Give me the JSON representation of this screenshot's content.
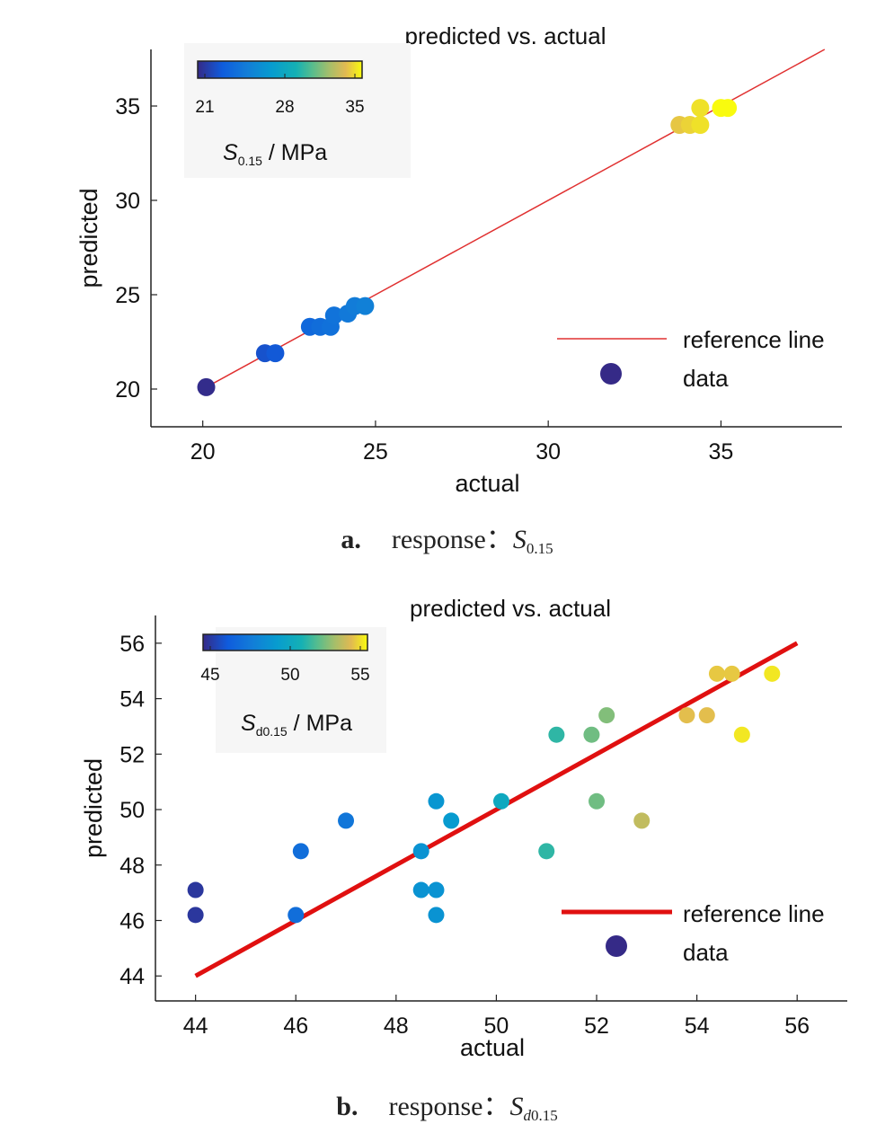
{
  "chart_data": [
    {
      "type": "scatter",
      "title": "predicted vs. actual",
      "xlabel": "actual",
      "ylabel": "predicted",
      "xlim": [
        18.5,
        38.5
      ],
      "ylim": [
        18,
        38
      ],
      "xticks": [
        20,
        25,
        30,
        35
      ],
      "yticks": [
        20,
        25,
        30,
        35
      ],
      "reference_line": {
        "name": "reference line",
        "x": [
          20,
          38
        ],
        "y": [
          20,
          38
        ],
        "color": "#e03030"
      },
      "legend": {
        "position": "bottom-right",
        "entries": [
          "reference line",
          "data"
        ]
      },
      "colorbar": {
        "label_main": "S",
        "label_sub": "0.15",
        "label_unit": " / MPa",
        "ticks": [
          "21",
          "28",
          "35"
        ],
        "min": 20,
        "max": 35
      },
      "series": [
        {
          "name": "data",
          "color_scale": "parula",
          "points": [
            {
              "x": 20.1,
              "y": 20.1
            },
            {
              "x": 21.8,
              "y": 21.9
            },
            {
              "x": 22.1,
              "y": 21.9
            },
            {
              "x": 23.1,
              "y": 23.3
            },
            {
              "x": 23.4,
              "y": 23.3
            },
            {
              "x": 23.7,
              "y": 23.3
            },
            {
              "x": 23.8,
              "y": 23.9
            },
            {
              "x": 24.2,
              "y": 24.0
            },
            {
              "x": 24.4,
              "y": 24.4
            },
            {
              "x": 24.7,
              "y": 24.4
            },
            {
              "x": 33.8,
              "y": 34.0
            },
            {
              "x": 34.1,
              "y": 34.0
            },
            {
              "x": 34.4,
              "y": 34.0
            },
            {
              "x": 34.4,
              "y": 34.9
            },
            {
              "x": 35.0,
              "y": 34.9
            },
            {
              "x": 35.2,
              "y": 34.9
            }
          ]
        }
      ]
    },
    {
      "type": "scatter",
      "title": "predicted vs. actual",
      "xlabel": "actual",
      "ylabel": "predicted",
      "xlim": [
        43.2,
        57.0
      ],
      "ylim": [
        43.1,
        57.0
      ],
      "xticks": [
        44,
        46,
        48,
        50,
        52,
        54,
        56
      ],
      "yticks": [
        44,
        46,
        48,
        50,
        52,
        54,
        56
      ],
      "reference_line": {
        "name": "reference line",
        "x": [
          44,
          56
        ],
        "y": [
          44,
          56
        ],
        "color": "#e01010"
      },
      "legend": {
        "position": "bottom-right",
        "entries": [
          "reference line",
          "data"
        ]
      },
      "colorbar": {
        "label_main": "S",
        "label_sub": "d0.15",
        "label_unit": " / MPa",
        "ticks": [
          "45",
          "50",
          "55"
        ],
        "min": 43,
        "max": 56
      },
      "series": [
        {
          "name": "data",
          "color_scale": "parula",
          "points": [
            {
              "x": 44.0,
              "y": 47.1,
              "c": 43.5
            },
            {
              "x": 44.0,
              "y": 46.2,
              "c": 43.5
            },
            {
              "x": 46.0,
              "y": 46.2,
              "c": 46.0
            },
            {
              "x": 46.1,
              "y": 48.5,
              "c": 46.0
            },
            {
              "x": 47.0,
              "y": 49.6,
              "c": 46.5
            },
            {
              "x": 48.5,
              "y": 48.5,
              "c": 48.3
            },
            {
              "x": 48.5,
              "y": 47.1,
              "c": 48.3
            },
            {
              "x": 48.8,
              "y": 47.1,
              "c": 48.3
            },
            {
              "x": 48.8,
              "y": 46.2,
              "c": 48.3
            },
            {
              "x": 48.8,
              "y": 50.3,
              "c": 48.5
            },
            {
              "x": 49.1,
              "y": 49.6,
              "c": 48.8
            },
            {
              "x": 50.1,
              "y": 50.3,
              "c": 50.0
            },
            {
              "x": 51.0,
              "y": 48.5,
              "c": 51.3
            },
            {
              "x": 51.2,
              "y": 52.7,
              "c": 51.3
            },
            {
              "x": 51.9,
              "y": 52.7,
              "c": 52.5
            },
            {
              "x": 52.0,
              "y": 50.3,
              "c": 52.5
            },
            {
              "x": 52.2,
              "y": 53.4,
              "c": 52.8
            },
            {
              "x": 52.9,
              "y": 49.6,
              "c": 54.0
            },
            {
              "x": 53.8,
              "y": 53.4,
              "c": 54.8
            },
            {
              "x": 54.2,
              "y": 53.4,
              "c": 54.8
            },
            {
              "x": 54.4,
              "y": 54.9,
              "c": 55.0
            },
            {
              "x": 54.7,
              "y": 54.9,
              "c": 55.0
            },
            {
              "x": 54.9,
              "y": 52.7,
              "c": 55.6
            },
            {
              "x": 55.5,
              "y": 54.9,
              "c": 55.6
            }
          ]
        }
      ]
    }
  ],
  "captions": [
    {
      "letter": "a.",
      "text": "response：",
      "sym": "S",
      "sub": "0.15"
    },
    {
      "letter": "b.",
      "text": "response：",
      "sym": "S",
      "sub_i": "d",
      "sub": "0.15"
    }
  ]
}
